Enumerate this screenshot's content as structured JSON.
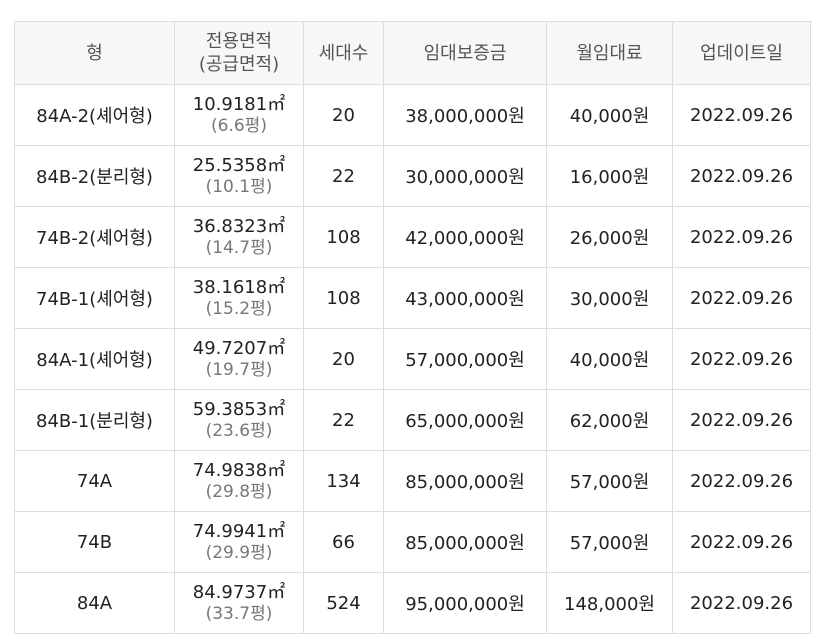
{
  "table": {
    "headers": {
      "type": "형",
      "area_line1": "전용면적",
      "area_line2": "(공급면적)",
      "households": "세대수",
      "deposit": "임대보증금",
      "rent": "월임대료",
      "updated": "업데이트일"
    },
    "rows": [
      {
        "type": "84A-2(셰어형)",
        "area": "10.9181㎡",
        "area_pyeong": "(6.6평)",
        "households": "20",
        "deposit": "38,000,000원",
        "rent": "40,000원",
        "updated": "2022.09.26"
      },
      {
        "type": "84B-2(분리형)",
        "area": "25.5358㎡",
        "area_pyeong": "(10.1평)",
        "households": "22",
        "deposit": "30,000,000원",
        "rent": "16,000원",
        "updated": "2022.09.26"
      },
      {
        "type": "74B-2(셰어형)",
        "area": "36.8323㎡",
        "area_pyeong": "(14.7평)",
        "households": "108",
        "deposit": "42,000,000원",
        "rent": "26,000원",
        "updated": "2022.09.26"
      },
      {
        "type": "74B-1(셰어형)",
        "area": "38.1618㎡",
        "area_pyeong": "(15.2평)",
        "households": "108",
        "deposit": "43,000,000원",
        "rent": "30,000원",
        "updated": "2022.09.26"
      },
      {
        "type": "84A-1(셰어형)",
        "area": "49.7207㎡",
        "area_pyeong": "(19.7평)",
        "households": "20",
        "deposit": "57,000,000원",
        "rent": "40,000원",
        "updated": "2022.09.26"
      },
      {
        "type": "84B-1(분리형)",
        "area": "59.3853㎡",
        "area_pyeong": "(23.6평)",
        "households": "22",
        "deposit": "65,000,000원",
        "rent": "62,000원",
        "updated": "2022.09.26"
      },
      {
        "type": "74A",
        "area": "74.9838㎡",
        "area_pyeong": "(29.8평)",
        "households": "134",
        "deposit": "85,000,000원",
        "rent": "57,000원",
        "updated": "2022.09.26"
      },
      {
        "type": "74B",
        "area": "74.9941㎡",
        "area_pyeong": "(29.9평)",
        "households": "66",
        "deposit": "85,000,000원",
        "rent": "57,000원",
        "updated": "2022.09.26"
      },
      {
        "type": "84A",
        "area": "84.9737㎡",
        "area_pyeong": "(33.7평)",
        "households": "524",
        "deposit": "95,000,000원",
        "rent": "148,000원",
        "updated": "2022.09.26"
      }
    ]
  }
}
